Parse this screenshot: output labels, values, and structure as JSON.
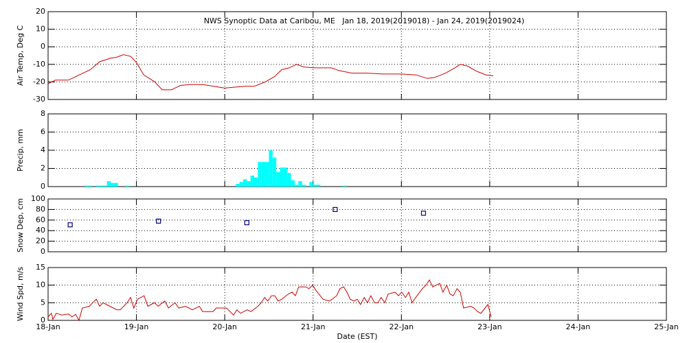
{
  "chart_data": [
    {
      "type": "line",
      "title": "NWS Synoptic Data at Caribou, ME   Jan 18, 2019(2019018) - Jan 24, 2019(2019024)",
      "y_label": "Air Temp, Deg C",
      "color": "#cc0000",
      "grid": true,
      "xlim": [
        0,
        168
      ],
      "ylim": [
        -30,
        20
      ],
      "yticks": [
        -30,
        -20,
        -10,
        0,
        10,
        20
      ],
      "x": [
        0,
        2,
        5.5,
        7.5,
        9.5,
        11.5,
        14,
        17,
        18.5,
        20.5,
        22.5,
        24,
        26,
        29,
        31,
        33.5,
        36,
        38.5,
        42,
        45,
        48,
        50.5,
        53.5,
        56,
        59,
        61.5,
        63.5,
        65.5,
        67.5,
        69.5,
        72,
        77,
        79,
        82.5,
        86.5,
        91,
        96,
        100,
        103,
        105,
        108,
        110.5,
        112,
        114,
        116.5,
        119,
        121
      ],
      "values": [
        -21,
        -19,
        -19,
        -17,
        -15,
        -13,
        -8.5,
        -6.5,
        -6,
        -4.5,
        -5.5,
        -9,
        -16,
        -20,
        -24.5,
        -24.5,
        -22,
        -21.5,
        -21.5,
        -22.5,
        -23.5,
        -23,
        -22.5,
        -22.5,
        -20,
        -17,
        -13,
        -12,
        -10,
        -11.5,
        -12,
        -12,
        -13.5,
        -15,
        -15,
        -15.5,
        -15.5,
        -16,
        -18,
        -17.5,
        -15,
        -12,
        -10,
        -11,
        -14,
        -16,
        -16.5
      ]
    },
    {
      "type": "bar",
      "y_label": "Precip, mm",
      "color": "#00ffff",
      "grid": true,
      "xlim": [
        0,
        168
      ],
      "ylim": [
        0,
        8
      ],
      "yticks": [
        0,
        2,
        4,
        6,
        8
      ],
      "x": [
        10,
        11,
        13,
        14,
        15,
        16,
        17,
        18,
        21,
        51,
        52,
        53,
        54,
        55,
        56,
        57,
        58,
        59,
        60,
        61,
        62,
        63,
        64,
        65,
        66,
        67,
        68,
        69,
        71,
        72,
        73,
        80
      ],
      "values": [
        0.1,
        0.1,
        0.1,
        0.1,
        0.1,
        0.6,
        0.4,
        0.4,
        0.1,
        0.3,
        0.5,
        0.8,
        0.6,
        1.2,
        1.0,
        2.7,
        2.7,
        2.7,
        4.0,
        3.2,
        1.6,
        2.1,
        2.1,
        1.5,
        0.7,
        0.2,
        0.6,
        0.2,
        0.5,
        0.2,
        0.2,
        0.1
      ]
    },
    {
      "type": "scatter",
      "y_label": "Snow Dep, cm",
      "color": "#000080",
      "grid": true,
      "xlim": [
        0,
        168
      ],
      "ylim": [
        0,
        100
      ],
      "yticks": [
        0,
        20,
        40,
        60,
        80,
        100
      ],
      "x": [
        6,
        30,
        54,
        78,
        102
      ],
      "values": [
        51,
        58,
        55,
        80,
        73
      ]
    },
    {
      "type": "line",
      "y_label": "Wind Spd, m/s",
      "x_label": "Date (EST)",
      "color": "#cc0000",
      "grid": true,
      "xlim": [
        0,
        168
      ],
      "ylim": [
        0,
        15
      ],
      "yticks": [
        0,
        5,
        10,
        15
      ],
      "xticks": [
        {
          "value": 0,
          "label": "18-Jan"
        },
        {
          "value": 24,
          "label": "19-Jan"
        },
        {
          "value": 48,
          "label": "20-Jan"
        },
        {
          "value": 72,
          "label": "21-Jan"
        },
        {
          "value": 96,
          "label": "22-Jan"
        },
        {
          "value": 120,
          "label": "23-Jan"
        },
        {
          "value": 144,
          "label": "24-Jan"
        },
        {
          "value": 168,
          "label": "25-Jan"
        }
      ],
      "x": [
        0,
        0.9,
        1.3,
        2.2,
        3.7,
        5.6,
        6.5,
        7.5,
        8.4,
        9.3,
        11.2,
        12.1,
        13.1,
        14,
        14.9,
        16.8,
        18.7,
        19.6,
        21.5,
        22.4,
        23.3,
        24.3,
        26.1,
        27.1,
        28.9,
        29.9,
        31.7,
        32.7,
        34.5,
        35.5,
        37.3,
        39.2,
        41.1,
        42,
        44.8,
        45.7,
        48.5,
        50.4,
        51.3,
        52.3,
        54.1,
        55.1,
        57,
        57.9,
        58.8,
        59.7,
        60.7,
        61.6,
        62.5,
        63.5,
        65.3,
        66.3,
        67.2,
        68.1,
        70,
        70.9,
        71.9,
        72.8,
        74.7,
        76.5,
        78.4,
        79.3,
        80.3,
        81.2,
        82.1,
        83.1,
        84,
        84.9,
        85.9,
        86.8,
        87.7,
        88.7,
        89.6,
        90.5,
        91.5,
        92.4,
        94.3,
        95.2,
        96.1,
        97.1,
        98,
        98.9,
        99.9,
        101.7,
        102.7,
        103.6,
        104.5,
        106.4,
        107.3,
        108.3,
        109.2,
        110.1,
        111.1,
        112,
        112.9,
        114.8,
        115.7,
        116.7,
        117.6,
        119.5,
        120.4
      ],
      "values": [
        1,
        2,
        0.3,
        2,
        1.5,
        1.8,
        1,
        1.7,
        0,
        3.5,
        4,
        5,
        6,
        4,
        5,
        4,
        3,
        3,
        5,
        6.5,
        3.5,
        6,
        7,
        4,
        5,
        4,
        5.5,
        3.5,
        5,
        3.5,
        4,
        3,
        4,
        2.5,
        2.5,
        3.5,
        3.5,
        1.5,
        3,
        2,
        3,
        2.5,
        4,
        5,
        6.5,
        5.5,
        7,
        7,
        5.5,
        6,
        7.5,
        8,
        7,
        9.5,
        9.5,
        9,
        10,
        8.5,
        6,
        5.5,
        7,
        9,
        9.5,
        8,
        6,
        5.5,
        6,
        4.5,
        6.5,
        5,
        7,
        5,
        5,
        6.5,
        5,
        7.5,
        8,
        7,
        8,
        6.5,
        8,
        5,
        6.5,
        9,
        10,
        11.5,
        9.5,
        10.5,
        8,
        10,
        7.5,
        7,
        9,
        8,
        3.5,
        4,
        3.5,
        2.5,
        2,
        4.5,
        1
      ]
    }
  ]
}
